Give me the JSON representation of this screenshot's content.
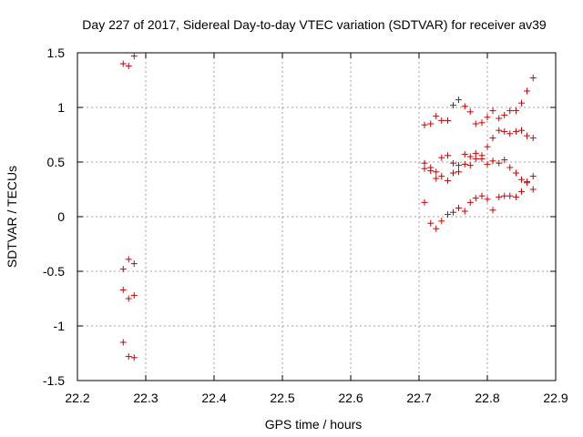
{
  "chart_data": {
    "type": "scatter",
    "title": "Day 227 of 2017, Sidereal Day-to-day VTEC variation (SDTVAR) for receiver av39",
    "xlabel": "GPS time / hours",
    "ylabel": "SDTVAR / TECUs",
    "xlim": [
      22.2,
      22.9
    ],
    "ylim": [
      -1.5,
      1.5
    ],
    "xticks": [
      22.2,
      22.3,
      22.4,
      22.5,
      22.6,
      22.7,
      22.8,
      22.9
    ],
    "xtick_labels": [
      "22.2",
      "22.3",
      "22.4",
      "22.5",
      "22.6",
      "22.7",
      "22.8",
      "22.9"
    ],
    "yticks": [
      -1.5,
      -1,
      -0.5,
      0,
      0.5,
      1,
      1.5
    ],
    "ytick_labels": [
      "-1.5",
      "-1",
      "-0.5",
      "0",
      "0.5",
      "1",
      "1.5"
    ],
    "grid": true,
    "marker": "+",
    "color": "#cc0000",
    "series": [
      {
        "name": "SDTVAR",
        "points": [
          [
            22.267,
            1.4
          ],
          [
            22.275,
            1.38
          ],
          [
            22.283,
            1.47
          ],
          [
            22.267,
            -0.48
          ],
          [
            22.275,
            -0.39
          ],
          [
            22.283,
            -0.43
          ],
          [
            22.267,
            -0.67
          ],
          [
            22.275,
            -0.75
          ],
          [
            22.283,
            -0.72
          ],
          [
            22.267,
            -1.15
          ],
          [
            22.275,
            -1.28
          ],
          [
            22.283,
            -1.29
          ],
          [
            22.708,
            0.84
          ],
          [
            22.717,
            0.85
          ],
          [
            22.725,
            0.92
          ],
          [
            22.733,
            0.88
          ],
          [
            22.742,
            0.88
          ],
          [
            22.75,
            1.02
          ],
          [
            22.758,
            1.07
          ],
          [
            22.767,
            1.01
          ],
          [
            22.775,
            0.96
          ],
          [
            22.783,
            0.85
          ],
          [
            22.792,
            0.86
          ],
          [
            22.8,
            0.91
          ],
          [
            22.808,
            0.97
          ],
          [
            22.817,
            0.9
          ],
          [
            22.825,
            0.93
          ],
          [
            22.833,
            0.97
          ],
          [
            22.842,
            0.97
          ],
          [
            22.85,
            1.04
          ],
          [
            22.858,
            1.15
          ],
          [
            22.867,
            1.27
          ],
          [
            22.708,
            0.49
          ],
          [
            22.717,
            0.45
          ],
          [
            22.725,
            0.41
          ],
          [
            22.733,
            0.54
          ],
          [
            22.742,
            0.56
          ],
          [
            22.75,
            0.49
          ],
          [
            22.758,
            0.47
          ],
          [
            22.767,
            0.57
          ],
          [
            22.775,
            0.55
          ],
          [
            22.783,
            0.58
          ],
          [
            22.792,
            0.56
          ],
          [
            22.8,
            0.64
          ],
          [
            22.808,
            0.72
          ],
          [
            22.817,
            0.79
          ],
          [
            22.825,
            0.78
          ],
          [
            22.833,
            0.76
          ],
          [
            22.842,
            0.78
          ],
          [
            22.85,
            0.79
          ],
          [
            22.858,
            0.74
          ],
          [
            22.867,
            0.72
          ],
          [
            22.708,
            0.44
          ],
          [
            22.717,
            0.42
          ],
          [
            22.725,
            0.35
          ],
          [
            22.733,
            0.37
          ],
          [
            22.742,
            0.33
          ],
          [
            22.75,
            0.4
          ],
          [
            22.758,
            0.41
          ],
          [
            22.767,
            0.48
          ],
          [
            22.775,
            0.47
          ],
          [
            22.783,
            0.53
          ],
          [
            22.792,
            0.53
          ],
          [
            22.8,
            0.48
          ],
          [
            22.808,
            0.51
          ],
          [
            22.817,
            0.49
          ],
          [
            22.825,
            0.52
          ],
          [
            22.833,
            0.45
          ],
          [
            22.842,
            0.4
          ],
          [
            22.85,
            0.34
          ],
          [
            22.858,
            0.31
          ],
          [
            22.867,
            0.37
          ],
          [
            22.708,
            0.13
          ],
          [
            22.717,
            -0.06
          ],
          [
            22.725,
            -0.11
          ],
          [
            22.733,
            -0.04
          ],
          [
            22.742,
            0.02
          ],
          [
            22.75,
            0.04
          ],
          [
            22.758,
            0.08
          ],
          [
            22.767,
            0.05
          ],
          [
            22.775,
            0.13
          ],
          [
            22.783,
            0.17
          ],
          [
            22.792,
            0.19
          ],
          [
            22.8,
            0.16
          ],
          [
            22.808,
            0.06
          ],
          [
            22.817,
            0.18
          ],
          [
            22.825,
            0.19
          ],
          [
            22.833,
            0.19
          ],
          [
            22.842,
            0.18
          ],
          [
            22.85,
            0.23
          ],
          [
            22.858,
            0.32
          ],
          [
            22.867,
            0.25
          ]
        ]
      }
    ]
  }
}
